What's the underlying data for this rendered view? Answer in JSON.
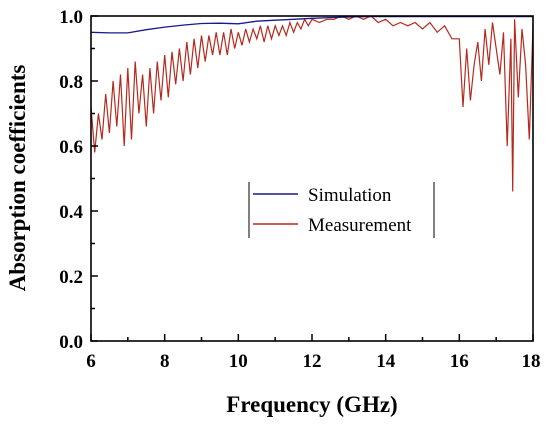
{
  "chart_data": {
    "type": "line",
    "title": "",
    "xlabel": "Frequency (GHz)",
    "ylabel": "Absorption coefficients",
    "xlim": [
      6,
      18
    ],
    "ylim": [
      0,
      1
    ],
    "xticks": [
      6,
      8,
      10,
      12,
      14,
      16,
      18
    ],
    "yticks": [
      0.0,
      0.2,
      0.4,
      0.6,
      0.8,
      1.0
    ],
    "ytick_labels": [
      "0.0",
      "0.2",
      "0.4",
      "0.6",
      "0.8",
      "1.0"
    ],
    "xtick_labels": [
      "6",
      "8",
      "10",
      "12",
      "14",
      "16",
      "18"
    ],
    "grid": false,
    "legend": {
      "placement": "center-right",
      "entries": [
        "Simulation",
        "Measurement"
      ]
    },
    "series": [
      {
        "name": "Simulation",
        "color": "#1a1a8c",
        "x": [
          6.0,
          6.5,
          7.0,
          7.5,
          8.0,
          8.5,
          9.0,
          9.5,
          10.0,
          10.5,
          11.0,
          11.5,
          12.0,
          12.5,
          13.0,
          13.5,
          14.0,
          15.0,
          16.0,
          17.0,
          18.0
        ],
        "y": [
          0.95,
          0.948,
          0.948,
          0.958,
          0.966,
          0.972,
          0.977,
          0.978,
          0.976,
          0.984,
          0.987,
          0.99,
          0.993,
          0.995,
          0.997,
          0.998,
          0.998,
          0.998,
          0.998,
          0.998,
          0.998
        ]
      },
      {
        "name": "Measurement",
        "color": "#b52a1e",
        "x": [
          6.0,
          6.1,
          6.2,
          6.3,
          6.4,
          6.5,
          6.6,
          6.7,
          6.8,
          6.9,
          7.0,
          7.1,
          7.2,
          7.3,
          7.4,
          7.5,
          7.6,
          7.7,
          7.8,
          7.9,
          8.0,
          8.1,
          8.2,
          8.3,
          8.4,
          8.5,
          8.6,
          8.7,
          8.8,
          8.9,
          9.0,
          9.1,
          9.2,
          9.3,
          9.4,
          9.5,
          9.6,
          9.7,
          9.8,
          9.9,
          10.0,
          10.1,
          10.2,
          10.3,
          10.4,
          10.5,
          10.6,
          10.7,
          10.8,
          10.9,
          11.0,
          11.1,
          11.2,
          11.3,
          11.4,
          11.5,
          11.6,
          11.7,
          11.8,
          11.9,
          12.0,
          12.2,
          12.4,
          12.6,
          12.8,
          13.0,
          13.2,
          13.4,
          13.6,
          13.8,
          14.0,
          14.2,
          14.4,
          14.6,
          14.8,
          15.0,
          15.2,
          15.4,
          15.6,
          15.8,
          16.0,
          16.1,
          16.2,
          16.3,
          16.4,
          16.5,
          16.6,
          16.7,
          16.8,
          16.9,
          17.0,
          17.1,
          17.2,
          17.3,
          17.4,
          17.45,
          17.5,
          17.6,
          17.7,
          17.8,
          17.9,
          18.0
        ],
        "y": [
          0.72,
          0.58,
          0.7,
          0.62,
          0.76,
          0.64,
          0.8,
          0.66,
          0.82,
          0.6,
          0.84,
          0.62,
          0.86,
          0.7,
          0.82,
          0.66,
          0.84,
          0.7,
          0.86,
          0.74,
          0.88,
          0.75,
          0.89,
          0.79,
          0.9,
          0.8,
          0.92,
          0.82,
          0.93,
          0.84,
          0.94,
          0.86,
          0.94,
          0.88,
          0.95,
          0.88,
          0.95,
          0.88,
          0.96,
          0.9,
          0.95,
          0.91,
          0.96,
          0.92,
          0.96,
          0.93,
          0.97,
          0.92,
          0.97,
          0.93,
          0.97,
          0.94,
          0.97,
          0.94,
          0.98,
          0.95,
          0.98,
          0.96,
          0.99,
          0.97,
          0.99,
          0.98,
          0.99,
          0.99,
          1.0,
          0.99,
          1.0,
          0.99,
          1.0,
          0.98,
          0.99,
          0.97,
          0.98,
          0.97,
          0.98,
          0.96,
          0.98,
          0.95,
          0.97,
          0.93,
          0.93,
          0.72,
          0.9,
          0.74,
          0.85,
          0.92,
          0.8,
          0.96,
          0.85,
          0.98,
          0.9,
          0.82,
          0.95,
          0.6,
          0.93,
          0.46,
          0.99,
          0.75,
          0.96,
          0.85,
          0.62,
          0.97
        ]
      }
    ]
  }
}
